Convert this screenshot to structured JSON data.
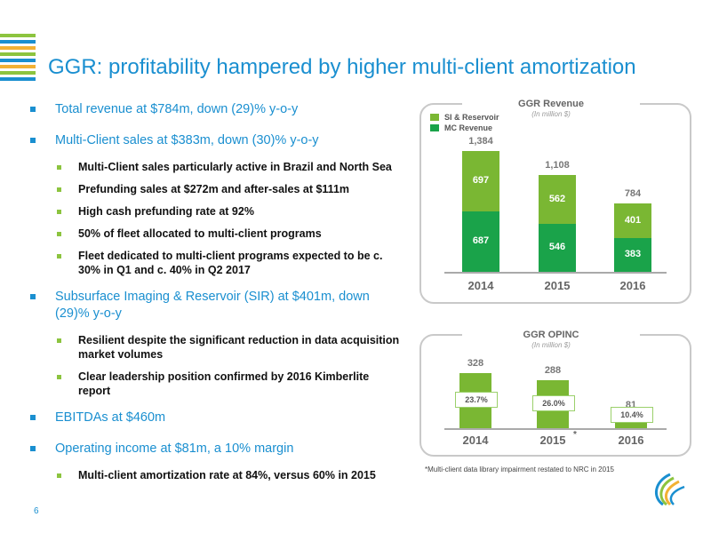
{
  "header": {
    "title": "GGR: profitability hampered by higher multi-client amortization",
    "stripe_colors": [
      "#8cc43f",
      "#1a8fd0",
      "#f2b134",
      "#8cc43f",
      "#1a8fd0",
      "#f2b134",
      "#8cc43f",
      "#1a8fd0"
    ]
  },
  "bullets": [
    {
      "level": 1,
      "text": "Total revenue at $784m, down (29)% y-o-y"
    },
    {
      "level": 1,
      "text": "Multi-Client sales at $383m, down (30)% y-o-y"
    },
    {
      "level": 2,
      "text": "Multi-Client sales particularly active in Brazil and North Sea"
    },
    {
      "level": 2,
      "text": "Prefunding sales at $272m and after-sales at $111m"
    },
    {
      "level": 2,
      "text": "High cash prefunding rate at 92%"
    },
    {
      "level": 2,
      "text": "50% of fleet allocated to multi-client programs"
    },
    {
      "level": 2,
      "text": "Fleet dedicated to multi-client programs expected to be c. 30% in Q1 and c. 40% in Q2 2017"
    },
    {
      "level": 1,
      "text": "Subsurface Imaging & Reservoir (SIR) at $401m, down (29)% y-o-y"
    },
    {
      "level": 2,
      "text": "Resilient despite the significant reduction in data acquisition market volumes"
    },
    {
      "level": 2,
      "text": "Clear leadership position confirmed by 2016 Kimberlite report"
    },
    {
      "level": 1,
      "text": "EBITDAs at $460m"
    },
    {
      "level": 1,
      "text": "Operating income at $81m, a 10% margin"
    },
    {
      "level": 2,
      "text": "Multi-client amortization rate at 84%, versus 60% in 2015"
    }
  ],
  "chart_data": [
    {
      "type": "bar",
      "title": "GGR Revenue",
      "subtitle": "(In million $)",
      "categories": [
        "2014",
        "2015",
        "2016"
      ],
      "series": [
        {
          "name": "MC Revenue",
          "values": [
            687,
            546,
            383
          ],
          "color": "#1aa34a"
        },
        {
          "name": "SI & Reservoir",
          "values": [
            697,
            562,
            401
          ],
          "color": "#7ab733"
        }
      ],
      "totals": [
        "1,384",
        "1,108",
        "784"
      ],
      "legend": "top-left",
      "ylim": [
        0,
        1384
      ]
    },
    {
      "type": "bar",
      "title": "GGR OPINC",
      "subtitle": "(In million $)",
      "categories": [
        "2014",
        "2015",
        "2016"
      ],
      "star": "*",
      "values": [
        328,
        288,
        81
      ],
      "margins": [
        "23.7%",
        "26.0%",
        "10.4%"
      ],
      "color": "#7ab733",
      "ylim": [
        0,
        328
      ]
    }
  ],
  "footnote": "*Multi-client data library impairment restated to NRC in 2015",
  "page_number": "6"
}
